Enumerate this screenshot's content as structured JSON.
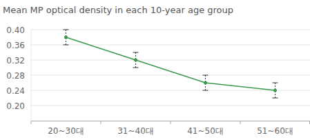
{
  "chart_data": {
    "type": "line",
    "title": "Mean MP optical density in each 10-year age group",
    "categories": [
      "20~30대",
      "31~40대",
      "41~50대",
      "51~60대"
    ],
    "values": [
      0.38,
      0.32,
      0.26,
      0.24
    ],
    "errors": [
      0.02,
      0.02,
      0.02,
      0.02
    ],
    "color": "#3a9a4a",
    "marker": "circle",
    "ylim": [
      0.16,
      0.4
    ],
    "yticks": [
      {
        "value": 0.2,
        "label": "0.20"
      },
      0.24,
      0.28,
      0.32,
      0.36,
      {
        "value": 0.4,
        "label": "0.40"
      }
    ],
    "grid": true
  }
}
